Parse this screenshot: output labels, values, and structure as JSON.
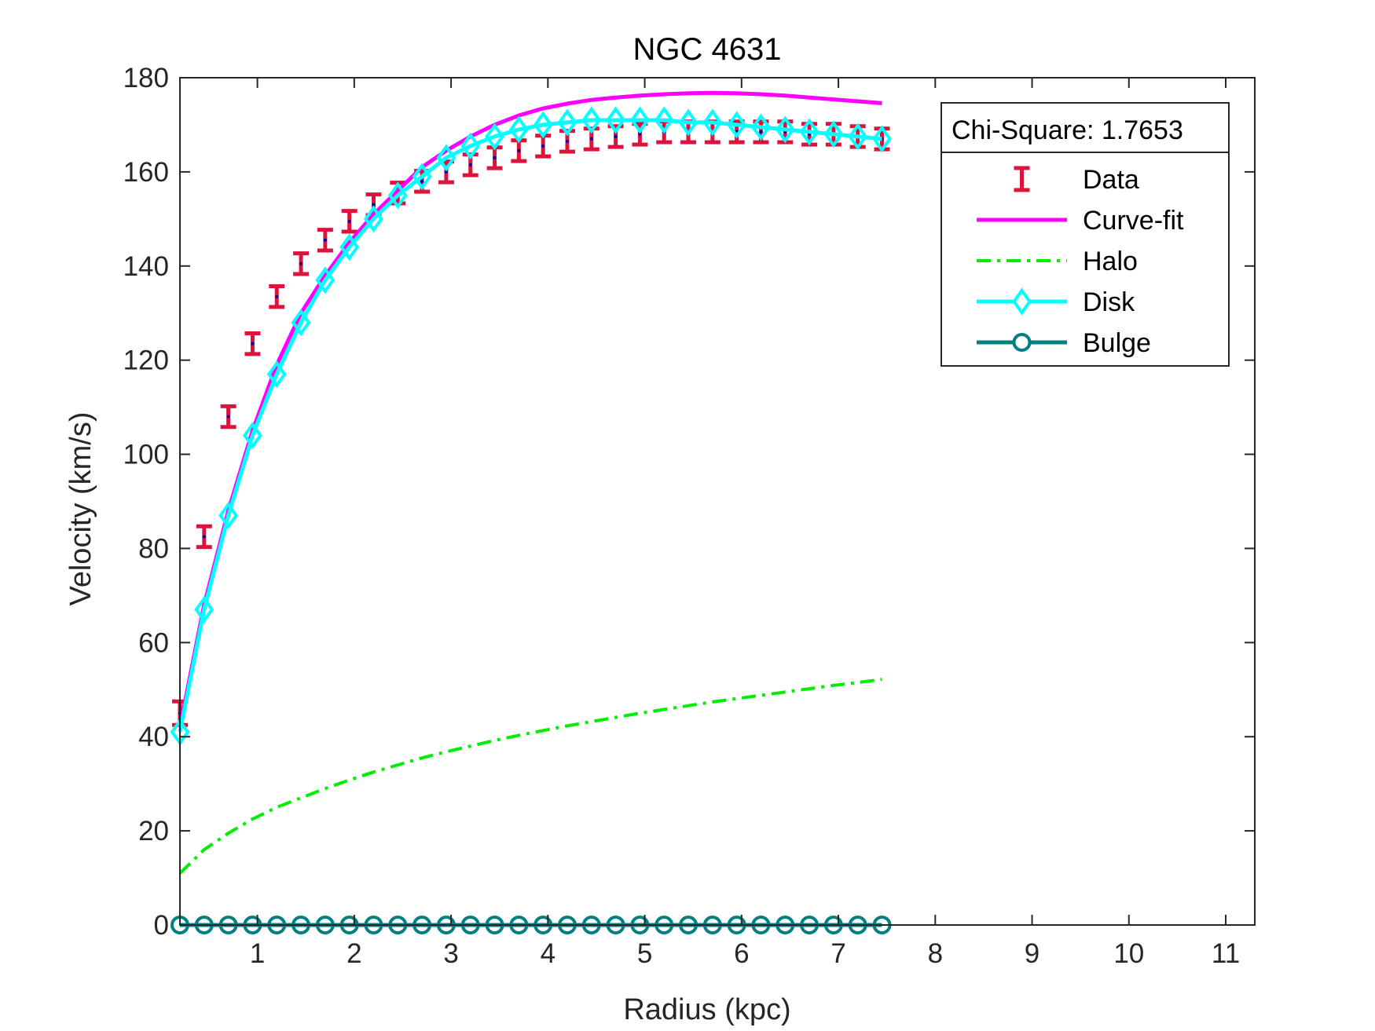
{
  "chart_data": {
    "type": "line",
    "title": "NGC 4631",
    "xlabel": "Radius (kpc)",
    "ylabel": "Velocity (km/s)",
    "xlim": [
      0.2,
      11.3
    ],
    "ylim": [
      0,
      180
    ],
    "xticks": [
      1,
      2,
      3,
      4,
      5,
      6,
      7,
      8,
      9,
      10,
      11
    ],
    "yticks": [
      0,
      20,
      40,
      60,
      80,
      100,
      120,
      140,
      160,
      180
    ],
    "grid": false,
    "legend_placement": "top-right",
    "legend_header": "Chi-Square: 1.7653",
    "x": [
      0.2,
      0.45,
      0.7,
      0.95,
      1.2,
      1.45,
      1.7,
      1.95,
      2.2,
      2.45,
      2.7,
      2.95,
      3.2,
      3.45,
      3.7,
      3.95,
      4.2,
      4.45,
      4.7,
      4.95,
      5.2,
      5.45,
      5.7,
      5.95,
      6.2,
      6.45,
      6.7,
      6.95,
      7.2,
      7.45
    ],
    "series": [
      {
        "name": "Data",
        "style": "errorbar",
        "color": "#dc143c",
        "values": [
          45,
          82.5,
          108,
          123.5,
          133.5,
          140.5,
          145.5,
          149.5,
          153,
          155.5,
          158,
          160,
          161.5,
          163,
          164.5,
          165.5,
          166.5,
          167,
          167.5,
          168,
          168.5,
          168.5,
          168.5,
          168.5,
          168.5,
          168.5,
          168,
          168,
          167.5,
          167
        ],
        "errors": [
          1.5,
          1.2,
          1.2,
          1.2,
          1.2,
          1.2,
          1.2,
          1.2,
          1.2,
          1.2,
          1.2,
          1.2,
          1.2,
          1.2,
          1.2,
          1.2,
          1.2,
          1.2,
          1.2,
          1.2,
          1.2,
          1.2,
          1.2,
          1.2,
          1.2,
          1.2,
          1.2,
          1.2,
          1.2,
          1.2
        ]
      },
      {
        "name": "Curve-fit",
        "style": "solid",
        "color": "#ff00ff",
        "values": [
          42,
          68,
          88,
          105,
          119,
          130,
          138,
          145,
          151,
          156,
          161,
          164.5,
          167.5,
          170,
          172,
          173.5,
          174.5,
          175.3,
          175.8,
          176.2,
          176.5,
          176.7,
          176.8,
          176.7,
          176.5,
          176.2,
          175.8,
          175.4,
          175,
          174.6
        ]
      },
      {
        "name": "Halo",
        "style": "dashdot",
        "color": "#00ee00",
        "values": [
          11,
          16,
          19.5,
          22.5,
          25,
          27,
          29,
          30.8,
          32.5,
          34,
          35.5,
          36.8,
          38,
          39.2,
          40.3,
          41.3,
          42.3,
          43.2,
          44.1,
          45,
          45.8,
          46.6,
          47.4,
          48.1,
          48.8,
          49.5,
          50.2,
          50.9,
          51.5,
          52.2
        ]
      },
      {
        "name": "Disk",
        "style": "solid-diamond",
        "color": "#00ffff",
        "values": [
          41,
          67,
          87,
          104,
          117,
          128,
          137,
          144,
          150,
          155,
          159,
          163,
          165.5,
          167.5,
          169,
          170,
          170.5,
          171,
          171,
          171,
          171,
          170.5,
          170.5,
          170,
          169.5,
          169,
          168.5,
          168,
          167.5,
          167
        ]
      },
      {
        "name": "Bulge",
        "style": "solid-circle",
        "color": "#008080",
        "values": [
          0,
          0,
          0,
          0,
          0,
          0,
          0,
          0,
          0,
          0,
          0,
          0,
          0,
          0,
          0,
          0,
          0,
          0,
          0,
          0,
          0,
          0,
          0,
          0,
          0,
          0,
          0,
          0,
          0,
          0
        ]
      }
    ]
  }
}
